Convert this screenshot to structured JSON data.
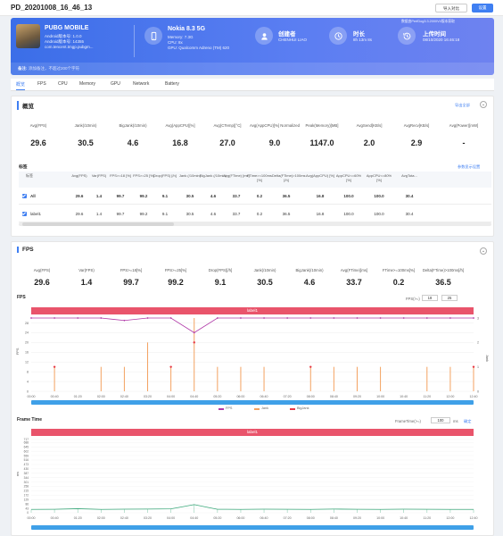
{
  "header": {
    "title": "PD_20201008_16_46_13",
    "import_label": "导入对比",
    "settings_label": "设置"
  },
  "hero": {
    "app_name": "PUBG MOBILE",
    "app_version": "Android版本号: 1.0.0",
    "app_build": "Android版本号: 14355",
    "package": "com.tencent.tmgp.pubgm... ",
    "device_name": "Nokia 8.3 5G",
    "memory": "Memory: 7.3G",
    "cpu": "CPU: 8x",
    "gpu": "GPU: Qualcomm Adreno (TM) 620",
    "creator_label": "创建者",
    "creator": "CHENHUI LIAO",
    "duration_label": "时长",
    "duration": "8h 13m 8s",
    "upload_label": "上传时间",
    "upload_time": "08/10/2020 16:46:18",
    "perfdog_note": "数据由PerfDog3.3.2000V4版本获取",
    "note_label": "备注:",
    "note_placeholder": "添加备注，不超过200个字符"
  },
  "tabs": [
    "概览",
    "FPS",
    "CPU",
    "Memory",
    "GPU",
    "Network",
    "Battery"
  ],
  "overview": {
    "title": "概览",
    "export_label": "导出全部",
    "metrics": [
      {
        "label": "Avg(FPS)",
        "value": "29.6"
      },
      {
        "label": "Jank(/10min)",
        "value": "30.5"
      },
      {
        "label": "BigJank(/10min)",
        "value": "4.6"
      },
      {
        "label": "Avg(AppCPU)[%]",
        "value": "16.8"
      },
      {
        "label": "Avg(CTemp)[°C]",
        "value": "27.0"
      },
      {
        "label": "Avg(AppCPU)[%] Normalized",
        "value": "9.0"
      },
      {
        "label": "Peak(Memory)[MB]",
        "value": "1147.0"
      },
      {
        "label": "AvgSend[KB/s]",
        "value": "2.0"
      },
      {
        "label": "AvgRecv[KB/s]",
        "value": "2.9"
      },
      {
        "label": "Avg(Power)[mW]",
        "value": "-"
      }
    ],
    "labels_title": "标签",
    "labels_link": "参数显示设置",
    "table": {
      "headers": [
        "标签",
        "Avg(FPS)",
        "Var(FPS)",
        "FPS>=18 [%]",
        "FPS>=25 [%]",
        "Drop(FPS) [/h]",
        "Jank (/10min)",
        "BigJank (/10min)",
        "Avg(FTime) [ms]",
        "FTime>=100ms [%]",
        "Delta(FTime)>100ms [/h]",
        "Avg(AppCPU) [%]",
        "AppCPU<=60% [%]",
        "AppCPU<=80% [%]",
        "AvgTota..."
      ],
      "rows": [
        [
          "All",
          "29.6",
          "1.4",
          "99.7",
          "99.2",
          "9.1",
          "30.5",
          "4.6",
          "33.7",
          "0.2",
          "36.5",
          "16.8",
          "100.0",
          "100.0",
          "30.4"
        ],
        [
          "label1",
          "29.6",
          "1.4",
          "99.7",
          "99.2",
          "9.1",
          "30.5",
          "4.6",
          "33.7",
          "0.2",
          "36.5",
          "16.8",
          "100.0",
          "100.0",
          "30.4"
        ]
      ]
    }
  },
  "fps": {
    "title": "FPS",
    "metrics": [
      {
        "label": "Avg(FPS)",
        "value": "29.6"
      },
      {
        "label": "Var(FPS)",
        "value": "1.4"
      },
      {
        "label": "FPS>=18[%]",
        "value": "99.7"
      },
      {
        "label": "FPS>=25[%]",
        "value": "99.2"
      },
      {
        "label": "Drop(FPS)[/h]",
        "value": "9.1"
      },
      {
        "label": "Jank(/10min)",
        "value": "30.5"
      },
      {
        "label": "BigJank(/10min)",
        "value": "4.6"
      },
      {
        "label": "Avg(FTime)[ms]",
        "value": "33.7"
      },
      {
        "label": "FTime>=100ms[%]",
        "value": "0.2"
      },
      {
        "label": "Delta(FTime)>100ms[/h]",
        "value": "36.5"
      }
    ],
    "fps_chart_title": "FPS",
    "fps_threshold_label": "FPS(>=)",
    "fps_threshold_1": "18",
    "fps_threshold_2": "25",
    "label_bar": "label1",
    "y_axis": "FPS",
    "y2_axis": "Jank",
    "legend": [
      "FPS",
      "Jank",
      "BigJank"
    ],
    "frametime_title": "Frame Time",
    "frametime_threshold_label": "FrameTime(>=)",
    "frametime_threshold": "100",
    "frametime_unit": "ms",
    "frametime_confirm": "确定",
    "frametime_y_axis": "ms"
  },
  "chart_data": [
    {
      "type": "line",
      "title": "FPS",
      "x": [
        "00:00",
        "00:40",
        "01:20",
        "02:00",
        "02:40",
        "03:20",
        "04:00",
        "04:40",
        "05:20",
        "06:00",
        "06:40",
        "07:20",
        "08:00",
        "08:40",
        "09:20",
        "10:00",
        "10:40",
        "11:20",
        "12:00",
        "12:40"
      ],
      "y_ticks": [
        0,
        4,
        8,
        12,
        16,
        20,
        24,
        28
      ],
      "y2_ticks": [
        0,
        1,
        2,
        3
      ],
      "series": [
        {
          "name": "FPS",
          "color": "#b03aa8",
          "values": [
            30,
            30,
            30,
            30,
            29,
            30,
            30,
            24,
            30,
            30,
            30,
            30,
            30,
            30,
            30,
            30,
            30,
            30,
            30,
            30
          ]
        },
        {
          "name": "Jank",
          "color": "#f4a261",
          "values": [
            0,
            1,
            0,
            1,
            1,
            2,
            1,
            3,
            1,
            1,
            1,
            0,
            1,
            1,
            1,
            1,
            0,
            1,
            1,
            1
          ]
        },
        {
          "name": "BigJank",
          "color": "#e63946",
          "values": [
            0,
            1,
            0,
            0,
            0,
            0,
            1,
            2,
            0,
            0,
            0,
            0,
            1,
            0,
            0,
            0,
            0,
            0,
            0,
            1
          ]
        }
      ]
    },
    {
      "type": "line",
      "title": "Frame Time",
      "x": [
        "00:00",
        "00:40",
        "01:20",
        "02:00",
        "02:40",
        "03:20",
        "04:00",
        "04:40",
        "05:20",
        "06:00",
        "06:40",
        "07:20",
        "08:00",
        "08:40",
        "09:20",
        "10:00",
        "10:40",
        "11:20",
        "12:00",
        "12:40"
      ],
      "y_ticks": [
        0,
        43,
        86,
        129,
        172,
        215,
        258,
        301,
        344,
        387,
        430,
        473,
        516,
        559,
        602,
        645,
        688,
        717
      ],
      "series": [
        {
          "name": "FrameTime",
          "color": "#3aa87a",
          "values": [
            33,
            34,
            40,
            33,
            35,
            36,
            38,
            80,
            34,
            33,
            35,
            34,
            33,
            36,
            34,
            33,
            35,
            34,
            33,
            33
          ]
        }
      ]
    }
  ],
  "colors": {
    "accent": "#3f7ff2",
    "label_bar": "#e9546b",
    "fps_line": "#b03aa8",
    "jank": "#f4a261",
    "ft_line": "#3aa87a"
  }
}
